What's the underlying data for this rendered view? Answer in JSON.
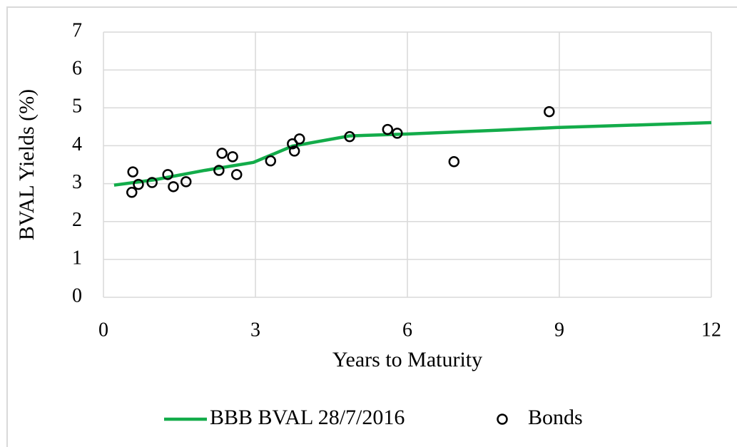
{
  "chart_data": {
    "type": "scatter",
    "x_label": "Years to Maturity",
    "y_label": "BVAL Yields (%)",
    "xlim": [
      0,
      12
    ],
    "xticks": [
      0,
      3,
      6,
      9,
      12
    ],
    "ylim": [
      0,
      7
    ],
    "yticks": [
      0,
      1,
      2,
      3,
      4,
      5,
      6,
      7
    ],
    "grid": true,
    "legend": "bottom",
    "series": [
      {
        "name": "BBB BVAL 28/7/2016",
        "type": "line",
        "color": "#13ac4a",
        "x": [
          0.21,
          1,
          2,
          2.96,
          3.73,
          4.86,
          5.99,
          7.8,
          8.94,
          12
        ],
        "values": [
          2.96,
          3.1,
          3.35,
          3.56,
          3.99,
          4.26,
          4.31,
          4.41,
          4.48,
          4.61
        ]
      },
      {
        "name": "Bonds",
        "type": "scatter",
        "color": "#000000",
        "x": [
          0.58,
          0.56,
          0.69,
          0.96,
          1.27,
          1.38,
          1.63,
          2.28,
          2.34,
          2.55,
          2.63,
          3.3,
          3.73,
          3.77,
          3.87,
          4.86,
          5.61,
          5.8,
          6.92,
          8.8
        ],
        "values": [
          3.31,
          2.77,
          2.98,
          3.03,
          3.24,
          2.92,
          3.05,
          3.35,
          3.8,
          3.71,
          3.24,
          3.6,
          4.05,
          3.86,
          4.18,
          4.24,
          4.43,
          4.33,
          3.58,
          4.9
        ]
      }
    ]
  }
}
